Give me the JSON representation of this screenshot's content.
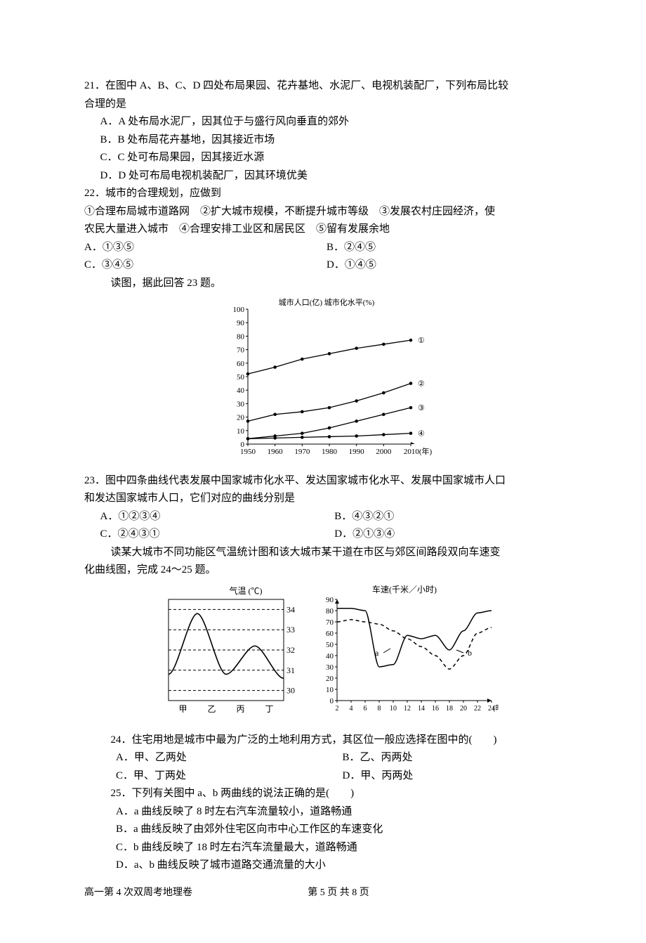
{
  "q21": {
    "stem1": "21．在图中 A、B、C、D 四处布局果园、花卉基地、水泥厂、电视机装配厂，下列布局比较",
    "stem2": "合理的是",
    "A": "A．A 处布局水泥厂，因其位于与盛行风向垂直的郊外",
    "B": "B．B 处布局花卉基地，因其接近市场",
    "C": "C．C 处可布局果园，因其接近水源",
    "D": "D．D 处可布局电视机装配厂，因其环境优美"
  },
  "q22": {
    "stem": "22．城市的合理规划，应做到",
    "line1": "①合理布局城市道路网　②扩大城市规模，不断提升城市等级　③发展农村庄园经济，使",
    "line2": "农民大量进入城市　④合理安排工业区和居民区　⑤留有发展余地",
    "A": "A．①③⑤",
    "B": "B．②④⑤",
    "C": "C．③④⑤",
    "D": "D．①④⑤"
  },
  "ctx23": "读图，据此回答 23 题。",
  "chart1": {
    "title_left": "城市人口(亿)",
    "title_right": "城市化水平(%)",
    "y_ticks": [
      0,
      10,
      20,
      30,
      40,
      50,
      60,
      70,
      80,
      90,
      100
    ],
    "x_ticks": [
      "1950",
      "1960",
      "1970",
      "1980",
      "1990",
      "2000",
      "2010(年)"
    ],
    "series": {
      "1": [
        52,
        57,
        63,
        67,
        71,
        74,
        77
      ],
      "2": [
        17,
        22,
        24,
        27,
        32,
        38,
        45
      ],
      "3": [
        4,
        6,
        8,
        12,
        17,
        22,
        27
      ],
      "4": [
        4,
        4.5,
        5,
        5.5,
        6,
        7,
        8
      ]
    },
    "labels": [
      "①",
      "②",
      "③",
      "④"
    ],
    "marker_r": 2.3,
    "stroke": "#000",
    "fontsize": 11
  },
  "q23": {
    "stem1": "23．图中四条曲线代表发展中国家城市化水平、发达国家城市化水平、发展中国家城市人口",
    "stem2": "和发达国家城市人口，它们对应的曲线分别是",
    "A": "A．①②③④",
    "B": "B．④③②①",
    "C": "C．②④③①",
    "D": "D．②①③④"
  },
  "ctx24": {
    "l1": "读某大城市不同功能区气温统计图和该大城市某干道在市区与郊区间路段双向车速变",
    "l2": "化曲线图，完成 24～25 题。"
  },
  "chart2a": {
    "title": "气温 (℃)",
    "y_ticks": [
      30,
      31,
      32,
      33,
      34
    ],
    "x_labels": [
      "甲",
      "乙",
      "丙",
      "丁"
    ],
    "values": [
      30.8,
      33.8,
      30.8,
      32.2,
      30.6
    ],
    "fontsize": 12
  },
  "chart2b": {
    "title": "车速(千米／小时)",
    "y_ticks": [
      0,
      10,
      20,
      30,
      40,
      50,
      60,
      70,
      80,
      90
    ],
    "x_ticks": [
      2,
      4,
      6,
      8,
      10,
      12,
      14,
      16,
      18,
      20,
      22,
      24
    ],
    "x_unit": "(时)",
    "a": [
      82,
      82,
      80,
      30,
      32,
      58,
      55,
      58,
      45,
      62,
      78,
      80
    ],
    "b": [
      70,
      72,
      70,
      68,
      62,
      55,
      48,
      40,
      28,
      40,
      60,
      65
    ],
    "label_a": "a",
    "label_b": "b",
    "fontsize": 12
  },
  "q24": {
    "stem": "24．住宅用地是城市中最为广泛的土地利用方式，其区位一般应选择在图中的(　　)",
    "A": "A．甲、乙两处",
    "B": "B．乙、丙两处",
    "C": "C．甲、丁两处",
    "D": "D．甲、丙两处"
  },
  "q25": {
    "stem": "25．下列有关图中 a、b 两曲线的说法正确的是(　　)",
    "A": "A．a 曲线反映了 8 时左右汽车流量较小，道路畅通",
    "B": "B．a 曲线反映了由郊外住宅区向市中心工作区的车速变化",
    "C": "C．b 曲线反映了 18 时左右汽车流量最大，道路畅通",
    "D": "D．a、b 曲线反映了城市道路交通流量的大小"
  },
  "footer": {
    "left": "高一第 4 次双周考地理卷",
    "mid": "第 5 页 共 8 页"
  }
}
